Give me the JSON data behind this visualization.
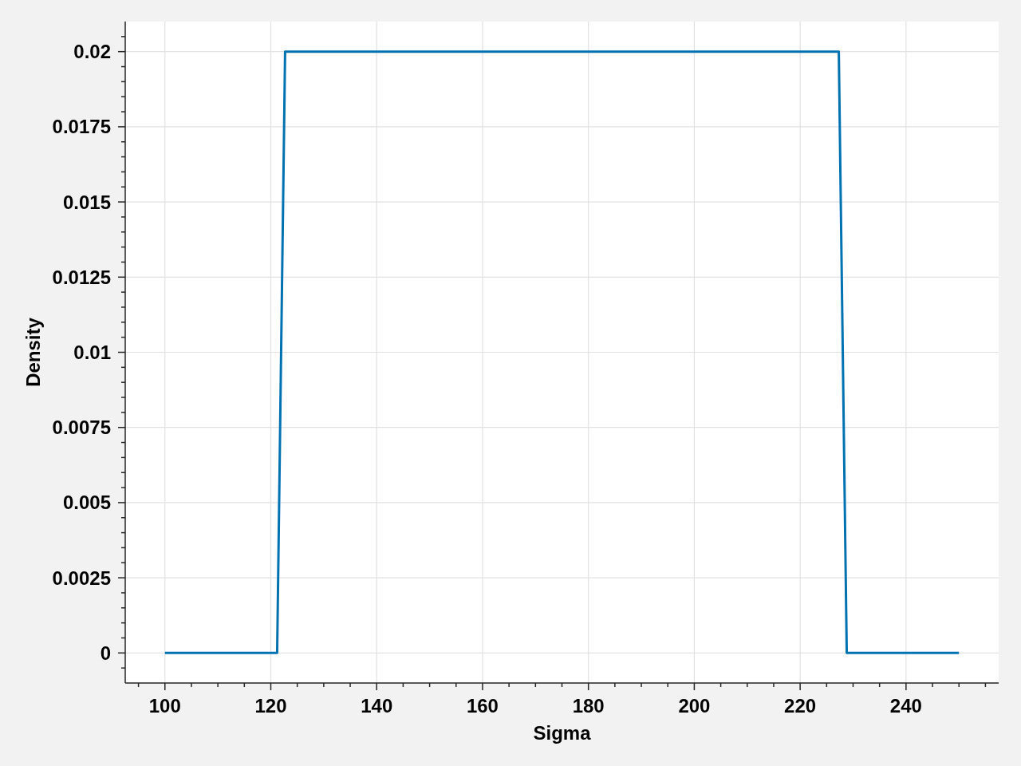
{
  "chart_data": {
    "type": "line",
    "xlabel": "Sigma",
    "ylabel": "Density",
    "x": [
      100,
      121.2,
      122.7,
      227.3,
      228.8,
      250
    ],
    "series": [
      {
        "color": "#0072b2",
        "values": [
          0,
          0,
          0.02,
          0.02,
          0,
          0
        ]
      }
    ],
    "xlim": [
      92.5,
      257.5
    ],
    "ylim": [
      -0.001,
      0.021
    ],
    "xticks": [
      {
        "value": 95,
        "label": null
      },
      100,
      {
        "value": 105,
        "label": null
      },
      {
        "value": 110,
        "label": null
      },
      {
        "value": 115,
        "label": null
      },
      120,
      {
        "value": 125,
        "label": null
      },
      {
        "value": 130,
        "label": null
      },
      {
        "value": 135,
        "label": null
      },
      140,
      {
        "value": 145,
        "label": null
      },
      {
        "value": 150,
        "label": null
      },
      {
        "value": 155,
        "label": null
      },
      160,
      {
        "value": 165,
        "label": null
      },
      {
        "value": 170,
        "label": null
      },
      {
        "value": 175,
        "label": null
      },
      180,
      {
        "value": 185,
        "label": null
      },
      {
        "value": 190,
        "label": null
      },
      {
        "value": 195,
        "label": null
      },
      200,
      {
        "value": 205,
        "label": null
      },
      {
        "value": 210,
        "label": null
      },
      {
        "value": 215,
        "label": null
      },
      220,
      {
        "value": 225,
        "label": null
      },
      {
        "value": 230,
        "label": null
      },
      {
        "value": 235,
        "label": null
      },
      240,
      {
        "value": 245,
        "label": null
      },
      {
        "value": 250,
        "label": null
      },
      {
        "value": 255,
        "label": null
      }
    ],
    "yticks": [
      {
        "value": -0.0005,
        "label": null
      },
      0,
      {
        "value": 0.0005,
        "label": null
      },
      {
        "value": 0.001,
        "label": null
      },
      {
        "value": 0.0015,
        "label": null
      },
      {
        "value": 0.002,
        "label": null
      },
      0.0025,
      {
        "value": 0.003,
        "label": null
      },
      {
        "value": 0.0035,
        "label": null
      },
      {
        "value": 0.004,
        "label": null
      },
      {
        "value": 0.0045,
        "label": null
      },
      0.005,
      {
        "value": 0.0055,
        "label": null
      },
      {
        "value": 0.006,
        "label": null
      },
      {
        "value": 0.0065,
        "label": null
      },
      {
        "value": 0.007,
        "label": null
      },
      0.0075,
      {
        "value": 0.008,
        "label": null
      },
      {
        "value": 0.0085,
        "label": null
      },
      {
        "value": 0.009,
        "label": null
      },
      {
        "value": 0.0095,
        "label": null
      },
      0.01,
      {
        "value": 0.0105,
        "label": null
      },
      {
        "value": 0.011,
        "label": null
      },
      {
        "value": 0.0115,
        "label": null
      },
      {
        "value": 0.012,
        "label": null
      },
      0.0125,
      {
        "value": 0.013,
        "label": null
      },
      {
        "value": 0.0135,
        "label": null
      },
      {
        "value": 0.014,
        "label": null
      },
      {
        "value": 0.0145,
        "label": null
      },
      0.015,
      {
        "value": 0.0155,
        "label": null
      },
      {
        "value": 0.016,
        "label": null
      },
      {
        "value": 0.0165,
        "label": null
      },
      {
        "value": 0.017,
        "label": null
      },
      0.0175,
      {
        "value": 0.018,
        "label": null
      },
      {
        "value": 0.0185,
        "label": null
      },
      {
        "value": 0.019,
        "label": null
      },
      {
        "value": 0.0195,
        "label": null
      },
      0.02,
      {
        "value": 0.0205,
        "label": null
      }
    ],
    "grid": true
  }
}
